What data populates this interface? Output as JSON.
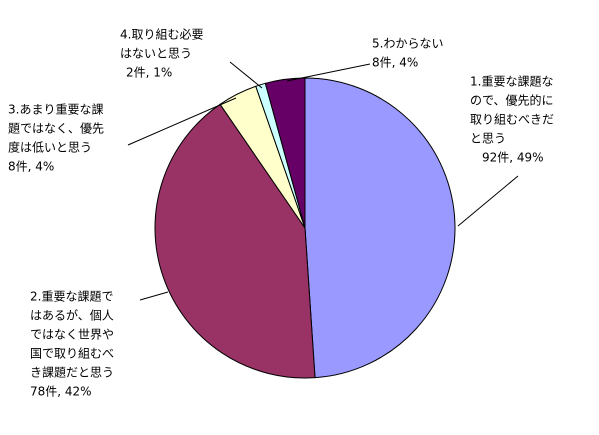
{
  "chart_data": {
    "type": "pie",
    "categories": [
      [
        "1.重要な課題な",
        "ので、優先的に",
        "取り組むべきだ",
        "と思う"
      ],
      [
        "2.重要な課題で",
        "はあるが、個人",
        "ではなく世界や",
        "国で取り組むべ",
        "き課題だと思う"
      ],
      [
        "3.あまり重要な課",
        "題ではなく、優先",
        "度は低いと思う"
      ],
      [
        "4.取り組む必要",
        "はないと思う"
      ],
      [
        "5.わからない"
      ]
    ],
    "values": [
      92,
      78,
      8,
      2,
      8
    ],
    "value_labels": [
      "92件, 49%",
      "78件, 42%",
      "8件, 4%",
      "2件, 1%",
      "8件, 4%"
    ],
    "colors": [
      "#9999ff",
      "#993366",
      "#ffffcc",
      "#ccffff",
      "#660066"
    ]
  }
}
